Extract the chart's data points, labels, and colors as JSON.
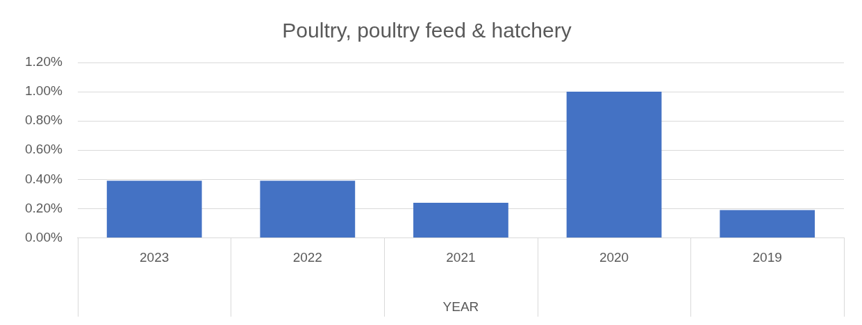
{
  "chart_data": {
    "type": "bar",
    "title": "Poultry, poultry feed & hatchery",
    "xlabel": "YEAR",
    "categories": [
      "2023",
      "2022",
      "2021",
      "2020",
      "2019"
    ],
    "values": [
      0.39,
      0.39,
      0.24,
      1.0,
      0.19
    ],
    "color": "#4472c4",
    "ylim": [
      0,
      1.2
    ],
    "yticks": [
      {
        "value": 0,
        "label": "0.00%"
      },
      {
        "value": 0.2,
        "label": "0.20%"
      },
      {
        "value": 0.4,
        "label": "0.40%"
      },
      {
        "value": 0.6,
        "label": "0.60%"
      },
      {
        "value": 0.8,
        "label": "0.80%"
      },
      {
        "value": 1.0,
        "label": "1.00%"
      },
      {
        "value": 1.2,
        "label": "1.20%"
      }
    ],
    "grid": "y",
    "legend": false
  }
}
